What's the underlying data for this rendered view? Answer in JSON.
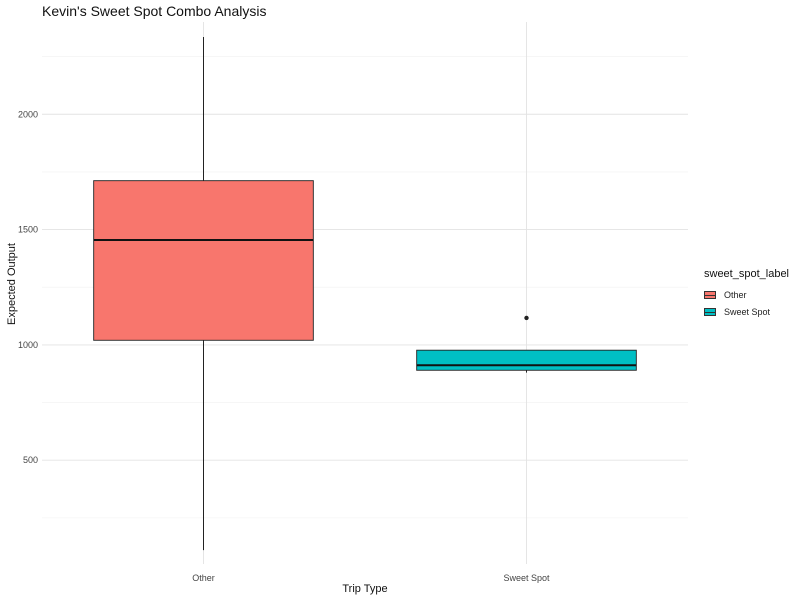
{
  "chart_data": {
    "type": "boxplot",
    "title": "Kevin's Sweet Spot Combo Analysis",
    "xlabel": "Trip Type",
    "ylabel": "Expected Output",
    "categories": [
      "Other",
      "Sweet Spot"
    ],
    "ylim": [
      50,
      2400
    ],
    "yticks": [
      500,
      1000,
      1500,
      2000
    ],
    "grid": true,
    "legend": {
      "title": "sweet_spot_label",
      "position": "right",
      "entries": [
        {
          "label": "Other",
          "color": "#F8766D"
        },
        {
          "label": "Sweet Spot",
          "color": "#00BFC4"
        }
      ]
    },
    "boxes": [
      {
        "category": "Other",
        "min": 110,
        "q1": 1020,
        "median": 1455,
        "q3": 1712,
        "max": 2335,
        "outliers": [],
        "color": "#F8766D"
      },
      {
        "category": "Sweet Spot",
        "min": 880,
        "q1": 890,
        "median": 912,
        "q3": 977,
        "max": 977,
        "outliers": [
          1117
        ],
        "color": "#00BFC4"
      }
    ]
  }
}
